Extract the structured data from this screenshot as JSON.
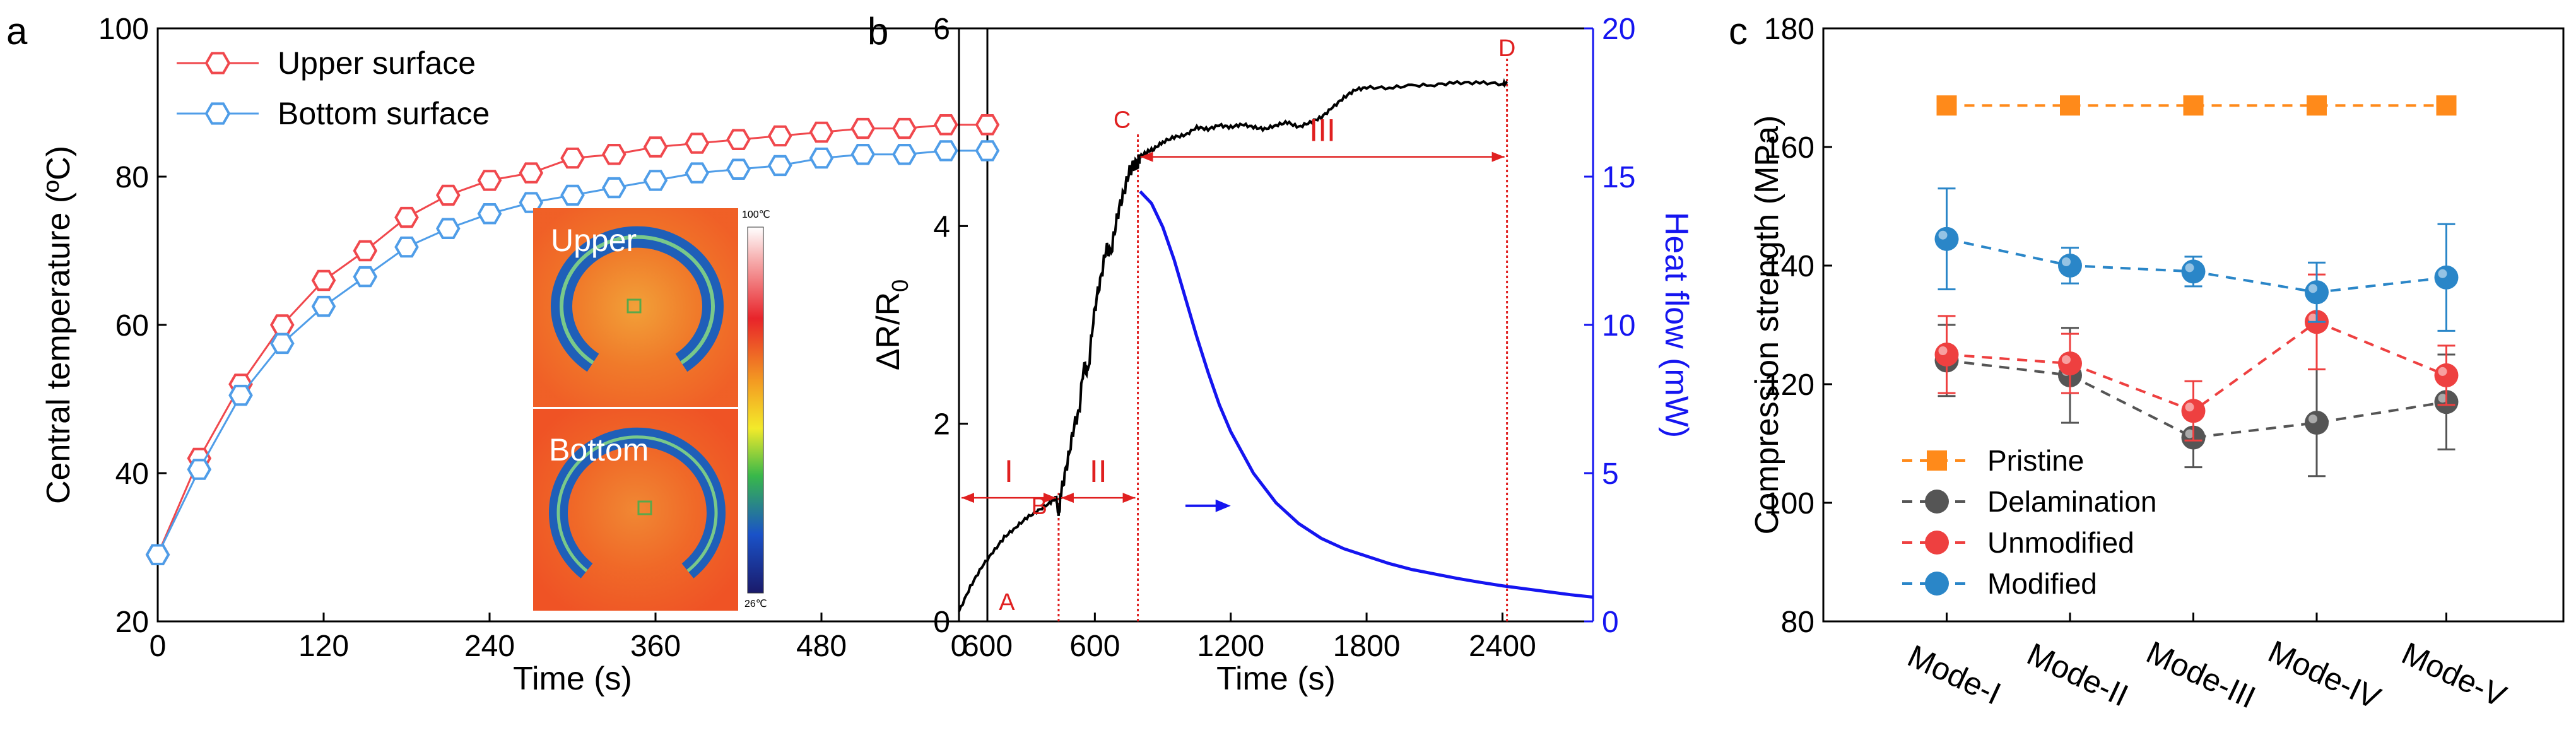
{
  "colors": {
    "upper": "#f0484d",
    "bottom": "#4f9de8",
    "black": "#000000",
    "blue": "#1515f0",
    "red": "#e02020",
    "orange": "#ff8a1a",
    "grey": "#555555",
    "modified": "#2a86c8",
    "unmodified": "#ee4040"
  },
  "chart_data": [
    {
      "panel": "a",
      "type": "line",
      "xlabel": "Time (s)",
      "ylabel": "Central temperature (ºC)",
      "xlim": [
        0,
        600
      ],
      "ylim": [
        20,
        100
      ],
      "xticks": [
        0,
        120,
        240,
        360,
        480,
        600
      ],
      "yticks": [
        20,
        40,
        60,
        80,
        100
      ],
      "legend": "top-left",
      "series": [
        {
          "name": "Upper surface",
          "marker": "hexagon",
          "x": [
            0,
            30,
            60,
            90,
            120,
            150,
            180,
            210,
            240,
            270,
            300,
            330,
            360,
            390,
            420,
            450,
            480,
            510,
            540,
            570,
            600
          ],
          "y": [
            29,
            42,
            52,
            60,
            66,
            70,
            74.5,
            77.5,
            79.5,
            80.5,
            82.5,
            83,
            84,
            84.5,
            85,
            85.5,
            86,
            86.5,
            86.5,
            87,
            87
          ]
        },
        {
          "name": "Bottom surface",
          "marker": "hexagon",
          "x": [
            0,
            30,
            60,
            90,
            120,
            150,
            180,
            210,
            240,
            270,
            300,
            330,
            360,
            390,
            420,
            450,
            480,
            510,
            540,
            570,
            600
          ],
          "y": [
            29,
            40.5,
            50.5,
            57.5,
            62.5,
            66.5,
            70.5,
            73,
            75,
            76.5,
            77.5,
            78.5,
            79.5,
            80.5,
            81,
            81.5,
            82.5,
            83,
            83,
            83.5,
            83.5
          ]
        }
      ],
      "inset": {
        "labels": [
          "Upper",
          "Bottom"
        ],
        "colorbar_max": "100℃",
        "colorbar_min": "26℃"
      }
    },
    {
      "panel": "b",
      "type": "line",
      "xlabel": "Time (s)",
      "ylabel": "ΔR/R",
      "ylabel_sub": "0",
      "y2label": "Heat flow (mW)",
      "xlim": [
        0,
        2800
      ],
      "ylim": [
        0,
        6
      ],
      "y2lim": [
        0,
        20
      ],
      "xticks": [
        0,
        600,
        1200,
        1800,
        2400
      ],
      "yticks": [
        0,
        2,
        4,
        6
      ],
      "y2ticks": [
        0,
        5,
        10,
        15,
        20
      ],
      "series": [
        {
          "name": "ΔR/R0",
          "axis": "left",
          "x": [
            0,
            50,
            100,
            150,
            200,
            250,
            300,
            350,
            400,
            430,
            440,
            450,
            470,
            490,
            510,
            530,
            550,
            570,
            590,
            610,
            630,
            650,
            670,
            690,
            710,
            730,
            750,
            770,
            790,
            800,
            830,
            860,
            900,
            950,
            1000,
            1050,
            1100,
            1150,
            1200,
            1250,
            1300,
            1350,
            1400,
            1450,
            1500,
            1550,
            1600,
            1650,
            1700,
            1750,
            1800,
            1900,
            2000,
            2100,
            2200,
            2300,
            2400,
            2420
          ],
          "y": [
            0.1,
            0.35,
            0.55,
            0.7,
            0.85,
            0.95,
            1.05,
            1.12,
            1.2,
            1.25,
            1.05,
            1.3,
            1.5,
            1.75,
            2.0,
            2.1,
            2.6,
            2.5,
            3.0,
            3.3,
            3.5,
            3.8,
            3.7,
            4.0,
            4.2,
            4.35,
            4.55,
            4.6,
            4.65,
            4.7,
            4.75,
            4.78,
            4.85,
            4.9,
            4.92,
            5.0,
            4.98,
            5.02,
            5.0,
            5.03,
            5.0,
            4.98,
            5.02,
            5.05,
            5.0,
            5.05,
            5.1,
            5.2,
            5.3,
            5.38,
            5.4,
            5.4,
            5.42,
            5.43,
            5.45,
            5.45,
            5.44,
            5.44
          ]
        },
        {
          "name": "Heat flow",
          "axis": "right",
          "x": [
            800,
            850,
            900,
            950,
            1000,
            1050,
            1100,
            1150,
            1200,
            1300,
            1400,
            1500,
            1600,
            1700,
            1800,
            1900,
            2000,
            2100,
            2200,
            2300,
            2400,
            2500,
            2600,
            2700,
            2800
          ],
          "y": [
            14.5,
            14.1,
            13.3,
            12.2,
            10.9,
            9.6,
            8.4,
            7.3,
            6.4,
            5.0,
            4.0,
            3.3,
            2.8,
            2.45,
            2.2,
            1.95,
            1.75,
            1.6,
            1.45,
            1.32,
            1.2,
            1.1,
            1.0,
            0.9,
            0.82
          ]
        }
      ],
      "points": [
        {
          "label": "A",
          "x": 100,
          "y": 0.05
        },
        {
          "label": "B",
          "x": 410,
          "y": 1.15
        },
        {
          "label": "C",
          "x": 790,
          "y": 4.9
        },
        {
          "label": "D",
          "x": 2420,
          "y": 5.75
        }
      ],
      "regions": [
        {
          "label": "I",
          "from": 0,
          "to": 440
        },
        {
          "label": "II",
          "from": 440,
          "to": 790
        },
        {
          "label": "III",
          "from": 790,
          "to": 2420
        }
      ]
    },
    {
      "panel": "c",
      "type": "scatter",
      "xlabel": "",
      "ylabel": "Compression strength (MPa)",
      "ylim": [
        80,
        180
      ],
      "yticks": [
        80,
        100,
        120,
        140,
        160,
        180
      ],
      "categories": [
        "Mode-I",
        "Mode-II",
        "Mode-III",
        "Mode-IV",
        "Mode-V"
      ],
      "legend": "bottom-left",
      "series": [
        {
          "name": "Pristine",
          "values": [
            167,
            167,
            167,
            167,
            167
          ],
          "errors": [
            0,
            0,
            0,
            0,
            0
          ]
        },
        {
          "name": "Delamination",
          "values": [
            124,
            121.5,
            111,
            113.5,
            117
          ],
          "errors": [
            6,
            8,
            5,
            9,
            8
          ]
        },
        {
          "name": "Unmodified",
          "values": [
            125,
            123.5,
            115.5,
            130.5,
            121.5
          ],
          "errors": [
            6.5,
            5,
            5,
            8,
            5
          ]
        },
        {
          "name": "Modified",
          "values": [
            144.5,
            140,
            139,
            135.5,
            138
          ],
          "errors": [
            8.5,
            3,
            2.5,
            5,
            9
          ]
        }
      ]
    }
  ],
  "panel_labels": [
    "a",
    "b",
    "c"
  ]
}
